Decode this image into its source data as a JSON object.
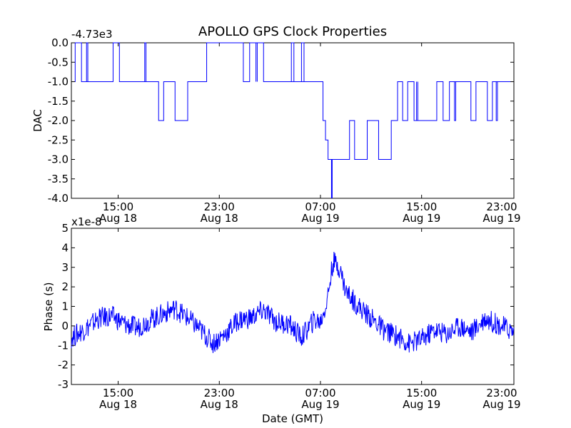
{
  "chart_data": [
    {
      "type": "line",
      "title": "APOLLO GPS Clock Properties",
      "ylabel": "DAC",
      "xlabel": "",
      "offset_label": "-4.73e3",
      "ylim": [
        -4.0,
        0.0
      ],
      "xlim_hours": [
        11.3,
        46.3
      ],
      "yticks": [
        "0.0",
        "-0.5",
        "-1.0",
        "-1.5",
        "-2.0",
        "-2.5",
        "-3.0",
        "-3.5",
        "-4.0"
      ],
      "xticks": [
        {
          "hour": 15,
          "line1": "15:00",
          "line2": "Aug 18"
        },
        {
          "hour": 23,
          "line1": "23:00",
          "line2": "Aug 18"
        },
        {
          "hour": 31,
          "line1": "07:00",
          "line2": "Aug 19"
        },
        {
          "hour": 39,
          "line1": "15:00",
          "line2": "Aug 19"
        },
        {
          "hour": 47,
          "line1": "23:00",
          "line2": "Aug 19"
        }
      ],
      "color": "#0000ff",
      "series": [
        {
          "name": "DAC",
          "x": [
            11.3,
            11.6,
            12.1,
            14.6,
            15.1,
            18.2,
            18.6,
            19.5,
            20.5,
            20.8,
            22.0,
            24.9,
            25.4,
            26.5,
            31.0,
            31.2,
            31.4,
            31.6,
            32.2,
            33.3,
            33.7,
            34.7,
            35.6,
            36.6,
            37.1,
            37.5,
            37.9,
            38.4,
            40.2,
            40.7,
            41.2,
            42.9,
            43.3,
            44.2,
            44.6,
            45.0,
            46.3
          ],
          "y": [
            -1.0,
            0.0,
            -1.0,
            0.0,
            -1.0,
            -2.0,
            -1.0,
            -2.0,
            -1.0,
            -1.0,
            0.0,
            -1.0,
            0.0,
            -1.0,
            -1.0,
            -2.0,
            -2.5,
            -3.0,
            -3.0,
            -2.0,
            -3.0,
            -2.0,
            -3.0,
            -2.0,
            -1.0,
            -2.0,
            -1.0,
            -2.0,
            -1.0,
            -2.0,
            -1.0,
            -2.0,
            -1.0,
            -2.0,
            -1.0,
            -1.0,
            -1.0
          ]
        }
      ]
    },
    {
      "type": "line",
      "title": "",
      "ylabel": "Phase (s)",
      "xlabel": "Date (GMT)",
      "offset_label": "x1e-8",
      "ylim": [
        -3,
        5
      ],
      "xlim_hours": [
        11.3,
        46.3
      ],
      "yticks": [
        "5",
        "4",
        "3",
        "2",
        "1",
        "0",
        "-1",
        "-2",
        "-3"
      ],
      "xticks": [
        {
          "hour": 15,
          "line1": "15:00",
          "line2": "Aug 18"
        },
        {
          "hour": 23,
          "line1": "23:00",
          "line2": "Aug 18"
        },
        {
          "hour": 31,
          "line1": "07:00",
          "line2": "Aug 19"
        },
        {
          "hour": 39,
          "line1": "15:00",
          "line2": "Aug 19"
        },
        {
          "hour": 47,
          "line1": "23:00",
          "line2": "Aug 19"
        }
      ],
      "color": "#0000ff",
      "series": [
        {
          "name": "Phase",
          "x": [
            11.3,
            12.5,
            13.5,
            14.5,
            15.5,
            16.5,
            17.5,
            18.5,
            19.5,
            20.5,
            21.5,
            22.5,
            23.5,
            24.5,
            25.5,
            26.5,
            27.5,
            28.5,
            29.5,
            30.5,
            31.0,
            31.5,
            32.0,
            32.5,
            33.0,
            34.0,
            35.0,
            36.0,
            37.0,
            38.0,
            39.0,
            40.0,
            41.0,
            42.0,
            43.0,
            44.0,
            45.0,
            46.3
          ],
          "y": [
            -0.6,
            -0.1,
            0.4,
            0.5,
            0.1,
            -0.1,
            0.3,
            0.6,
            0.9,
            0.4,
            -0.2,
            -0.9,
            -0.4,
            0.3,
            0.4,
            0.8,
            0.2,
            0.1,
            -0.6,
            0.3,
            0.2,
            1.2,
            3.3,
            3.0,
            1.8,
            1.0,
            0.4,
            -0.2,
            -0.5,
            -0.9,
            -0.7,
            -0.2,
            -0.4,
            0.0,
            -0.3,
            0.4,
            0.1,
            -0.3
          ]
        }
      ]
    }
  ]
}
